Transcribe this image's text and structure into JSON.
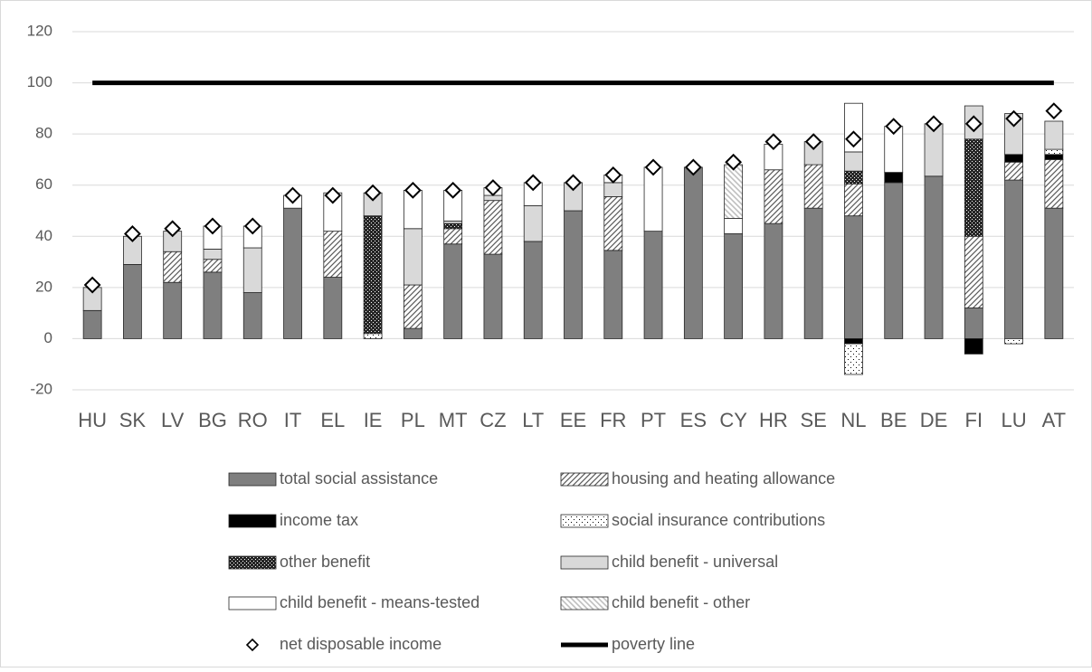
{
  "chart_data": {
    "type": "stacked-bar",
    "categories": [
      "HU",
      "SK",
      "LV",
      "BG",
      "RO",
      "IT",
      "EL",
      "IE",
      "PL",
      "MT",
      "CZ",
      "LT",
      "EE",
      "FR",
      "PT",
      "ES",
      "CY",
      "HR",
      "SE",
      "NL",
      "BE",
      "DE",
      "FI",
      "LU",
      "AT"
    ],
    "ylim": [
      -20,
      120
    ],
    "yticks": [
      -20,
      0,
      20,
      40,
      60,
      80,
      100,
      120
    ],
    "grid": true,
    "series": [
      {
        "name": "total social assistance",
        "color": "#7f7f7f",
        "pattern": "solid",
        "values": [
          11,
          29,
          22,
          26,
          18,
          51,
          24,
          0,
          4,
          37,
          33,
          38,
          50,
          34.5,
          42,
          67,
          41,
          45,
          51,
          48,
          61,
          63.5,
          12,
          62,
          51
        ]
      },
      {
        "name": "housing and heating allowance",
        "color": "#595959",
        "pattern": "hatch",
        "values": [
          0,
          0,
          12,
          5,
          0,
          0,
          18,
          0,
          17,
          6,
          21,
          0,
          0,
          21,
          0,
          0,
          0,
          21,
          17,
          12.5,
          0,
          0,
          28,
          7,
          19
        ]
      },
      {
        "name": "income tax",
        "color": "#000000",
        "pattern": "solid",
        "values": [
          0,
          0,
          0,
          0,
          0,
          0,
          0,
          0,
          0,
          0,
          0,
          0,
          0,
          0,
          0,
          0,
          0,
          0,
          0,
          -2,
          4,
          0,
          -6,
          3,
          2
        ]
      },
      {
        "name": "social insurance contributions",
        "color": "#000000",
        "pattern": "dots",
        "values": [
          0,
          0,
          0,
          0,
          0,
          0,
          0,
          2,
          0,
          0,
          0,
          0,
          0,
          0,
          0,
          0,
          0,
          0,
          0,
          -12,
          0,
          0,
          0,
          -2,
          2
        ]
      },
      {
        "name": "other benefit",
        "color": "#262626",
        "pattern": "crosshatch",
        "values": [
          0,
          0,
          0,
          0,
          0,
          0,
          0,
          46,
          0,
          2,
          0,
          0,
          0,
          0,
          0,
          0,
          0,
          0,
          0,
          5,
          0,
          0,
          38,
          0,
          0
        ]
      },
      {
        "name": "child benefit - universal",
        "color": "#d9d9d9",
        "pattern": "solid",
        "values": [
          9,
          11,
          8,
          4,
          17.5,
          0,
          0,
          9,
          22,
          1,
          2,
          14,
          11,
          5.5,
          0,
          0,
          0,
          0,
          9,
          7.5,
          0,
          20.5,
          13,
          16,
          11
        ]
      },
      {
        "name": "child benefit - means-tested",
        "color": "#ffffff",
        "pattern": "solid",
        "values": [
          0,
          0,
          0,
          9,
          8.5,
          5,
          15,
          0,
          15,
          12,
          3,
          9,
          0,
          3,
          25,
          0,
          6,
          10,
          0,
          19,
          18,
          0,
          0,
          0,
          0
        ]
      },
      {
        "name": "child benefit - other",
        "color": "#bfbfbf",
        "pattern": "backhatch",
        "values": [
          0,
          0,
          0,
          0,
          0,
          0,
          0,
          0,
          0,
          0,
          0,
          0,
          0,
          0,
          0,
          0,
          21,
          0,
          0,
          0,
          0,
          0,
          0,
          0,
          0
        ]
      }
    ],
    "markers": {
      "name": "net disposable income",
      "color": "#000000",
      "values": [
        21,
        41,
        43,
        44,
        44,
        56,
        56,
        57,
        58,
        58,
        59,
        61,
        61,
        64,
        67,
        67,
        69,
        77,
        77,
        78,
        83,
        84,
        84,
        86,
        89
      ]
    },
    "reference_lines": [
      {
        "name": "poverty line",
        "value": 100,
        "color": "#000000"
      }
    ]
  }
}
